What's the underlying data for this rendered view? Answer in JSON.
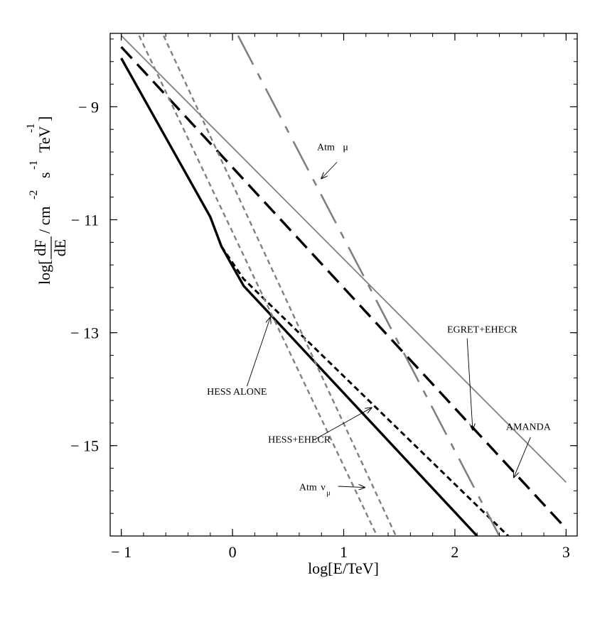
{
  "chart_data": {
    "type": "line",
    "xlabel": "log[E/TeV]",
    "ylabel": {
      "prefix": "log[",
      "frac_num": "dF",
      "frac_den": "dE",
      "units": "/ cm",
      "units_exp": "-2",
      "s": "s",
      "s_exp": "-1",
      "tev": "TeV",
      "tev_exp": "-1",
      "suffix": "]"
    },
    "xlim": [
      -1.1,
      3.1
    ],
    "ylim": [
      -16.6,
      -7.7
    ],
    "xticks": [
      -1,
      0,
      1,
      2,
      3
    ],
    "xtick_labels": [
      "− 1",
      "0",
      "1",
      "2",
      "3"
    ],
    "yticks": [
      -9,
      -11,
      -13,
      -15
    ],
    "ytick_labels": [
      "− 9",
      "− 11",
      "− 13",
      "− 15"
    ],
    "series": [
      {
        "name": "AMANDA",
        "color": "#808080",
        "dash": "solid",
        "x": [
          -1,
          3
        ],
        "y": [
          -7.74,
          -15.65
        ]
      },
      {
        "name": "EGRET+EHECR",
        "color": "#000000",
        "dash": "dashed",
        "x": [
          -1,
          3
        ],
        "y": [
          -7.94,
          -16.47
        ]
      },
      {
        "name": "HESS ALONE",
        "color": "#000000",
        "dash": "solid",
        "x": [
          -1,
          -0.2,
          -0.1,
          0.1,
          2.2
        ],
        "y": [
          -8.14,
          -10.95,
          -11.47,
          -12.17,
          -16.6
        ]
      },
      {
        "name": "HESS+EHECR",
        "color": "#000000",
        "dash": "short-dashed",
        "x": [
          -0.1,
          0.1,
          2.48
        ],
        "y": [
          -11.47,
          -12.05,
          -16.6
        ]
      },
      {
        "name": "Atm μ",
        "color": "#808080",
        "dash": "long-dash-dot",
        "x": [
          0.05,
          2.4
        ],
        "y": [
          -7.74,
          -16.6
        ]
      },
      {
        "name": "Atm νμ (1)",
        "color": "#808080",
        "dash": "dotted",
        "x": [
          -0.84,
          1.3
        ],
        "y": [
          -7.74,
          -16.6
        ]
      },
      {
        "name": "Atm νμ (2)",
        "color": "#808080",
        "dash": "dotted",
        "x": [
          -0.62,
          1.47
        ],
        "y": [
          -7.74,
          -16.6
        ]
      }
    ],
    "annotations": [
      {
        "id": "atm-mu",
        "text": "Atm",
        "sub": "μ",
        "sub_mode": "inline",
        "x": 0.76,
        "y": -9.77,
        "arrow_from": [
          0.94,
          -9.98
        ],
        "arrow_to": [
          0.8,
          -10.27
        ]
      },
      {
        "id": "egret",
        "text": "EGRET+EHECR",
        "x": 1.93,
        "y": -13.0,
        "arrow_from": [
          2.11,
          -13.1
        ],
        "arrow_to": [
          2.16,
          -14.72
        ]
      },
      {
        "id": "hess-alone",
        "text": "HESS ALONE",
        "x": -0.23,
        "y": -14.1,
        "arrow_from": [
          0.13,
          -13.95
        ],
        "arrow_to": [
          0.34,
          -12.73
        ]
      },
      {
        "id": "hess-ehecr",
        "text": "HESS+EHECR",
        "x": 0.32,
        "y": -14.95,
        "arrow_from": [
          0.73,
          -14.9
        ],
        "arrow_to": [
          1.25,
          -14.33
        ]
      },
      {
        "id": "amanda",
        "text": "AMANDA",
        "x": 2.46,
        "y": -14.72,
        "arrow_from": [
          2.68,
          -14.85
        ],
        "arrow_to": [
          2.53,
          -15.56
        ]
      },
      {
        "id": "atm-nu",
        "text": "Atm",
        "sub": "νμ",
        "sub_mode": "nu",
        "x": 0.6,
        "y": -15.79,
        "arrow_from": [
          0.95,
          -15.72
        ],
        "arrow_to": [
          1.19,
          -15.74
        ]
      }
    ]
  }
}
